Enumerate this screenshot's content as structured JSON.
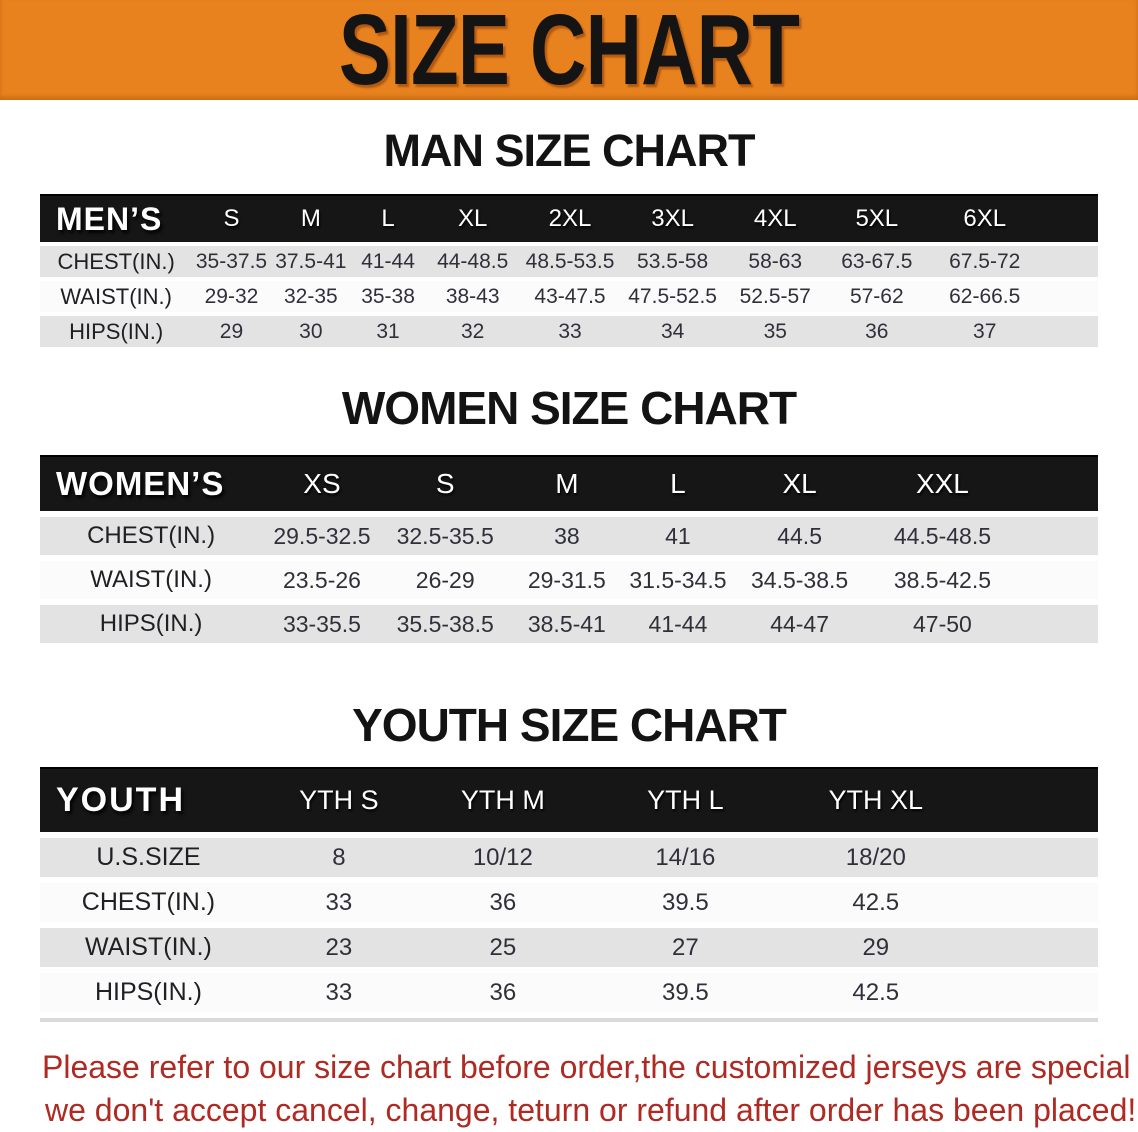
{
  "banner": {
    "title": "SIZE CHART",
    "bg_color": "#E8821E",
    "text_color": "#141414"
  },
  "sections": [
    {
      "heading": "MAN SIZE CHART",
      "table": {
        "corner": "MEN’S",
        "columns": [
          "S",
          "M",
          "L",
          "XL",
          "2XL",
          "3XL",
          "4XL",
          "5XL",
          "6XL"
        ],
        "rows": [
          {
            "label": "CHEST(IN.)",
            "values": [
              "35-37.5",
              "37.5-41",
              "41-44",
              "44-48.5",
              "48.5-53.5",
              "53.5-58",
              "58-63",
              "63-67.5",
              "67.5-72"
            ]
          },
          {
            "label": "WAIST(IN.)",
            "values": [
              "29-32",
              "32-35",
              "35-38",
              "38-43",
              "43-47.5",
              "47.5-52.5",
              "52.5-57",
              "57-62",
              "62-66.5"
            ]
          },
          {
            "label": "HIPS(IN.)",
            "values": [
              "29",
              "30",
              "31",
              "32",
              "33",
              "34",
              "35",
              "36",
              "37"
            ]
          }
        ]
      }
    },
    {
      "heading": "WOMEN SIZE CHART",
      "table": {
        "corner": "WOMEN’S",
        "columns": [
          "XS",
          "S",
          "M",
          "L",
          "XL",
          "XXL"
        ],
        "rows": [
          {
            "label": "CHEST(IN.)",
            "values": [
              "29.5-32.5",
              "32.5-35.5",
              "38",
              "41",
              "44.5",
              "44.5-48.5"
            ]
          },
          {
            "label": "WAIST(IN.)",
            "values": [
              "23.5-26",
              "26-29",
              "29-31.5",
              "31.5-34.5",
              "34.5-38.5",
              "38.5-42.5"
            ]
          },
          {
            "label": "HIPS(IN.)",
            "values": [
              "33-35.5",
              "35.5-38.5",
              "38.5-41",
              "41-44",
              "44-47",
              "47-50"
            ]
          }
        ]
      }
    },
    {
      "heading": "YOUTH SIZE CHART",
      "table": {
        "corner": "YOUTH",
        "columns": [
          "YTH S",
          "YTH M",
          "YTH L",
          "YTH XL"
        ],
        "rows": [
          {
            "label": "U.S.SIZE",
            "values": [
              "8",
              "10/12",
              "14/16",
              "18/20"
            ]
          },
          {
            "label": "CHEST(IN.)",
            "values": [
              "33",
              "36",
              "39.5",
              "42.5"
            ]
          },
          {
            "label": "WAIST(IN.)",
            "values": [
              "23",
              "25",
              "27",
              "29"
            ]
          },
          {
            "label": "HIPS(IN.)",
            "values": [
              "33",
              "36",
              "39.5",
              "42.5"
            ]
          }
        ]
      }
    }
  ],
  "footnote": {
    "line1": "Please refer to our size chart before order,the customized jerseys are special products,",
    "line2": "we don't accept cancel, change, teturn or refund after order has been placed!"
  },
  "colors": {
    "banner_orange": "#E8821E",
    "header_black": "#161616",
    "row_shade_gray": "#E3E3E4",
    "row_light_white": "#FBFBFB",
    "footnote_red": "#AE2A22"
  }
}
